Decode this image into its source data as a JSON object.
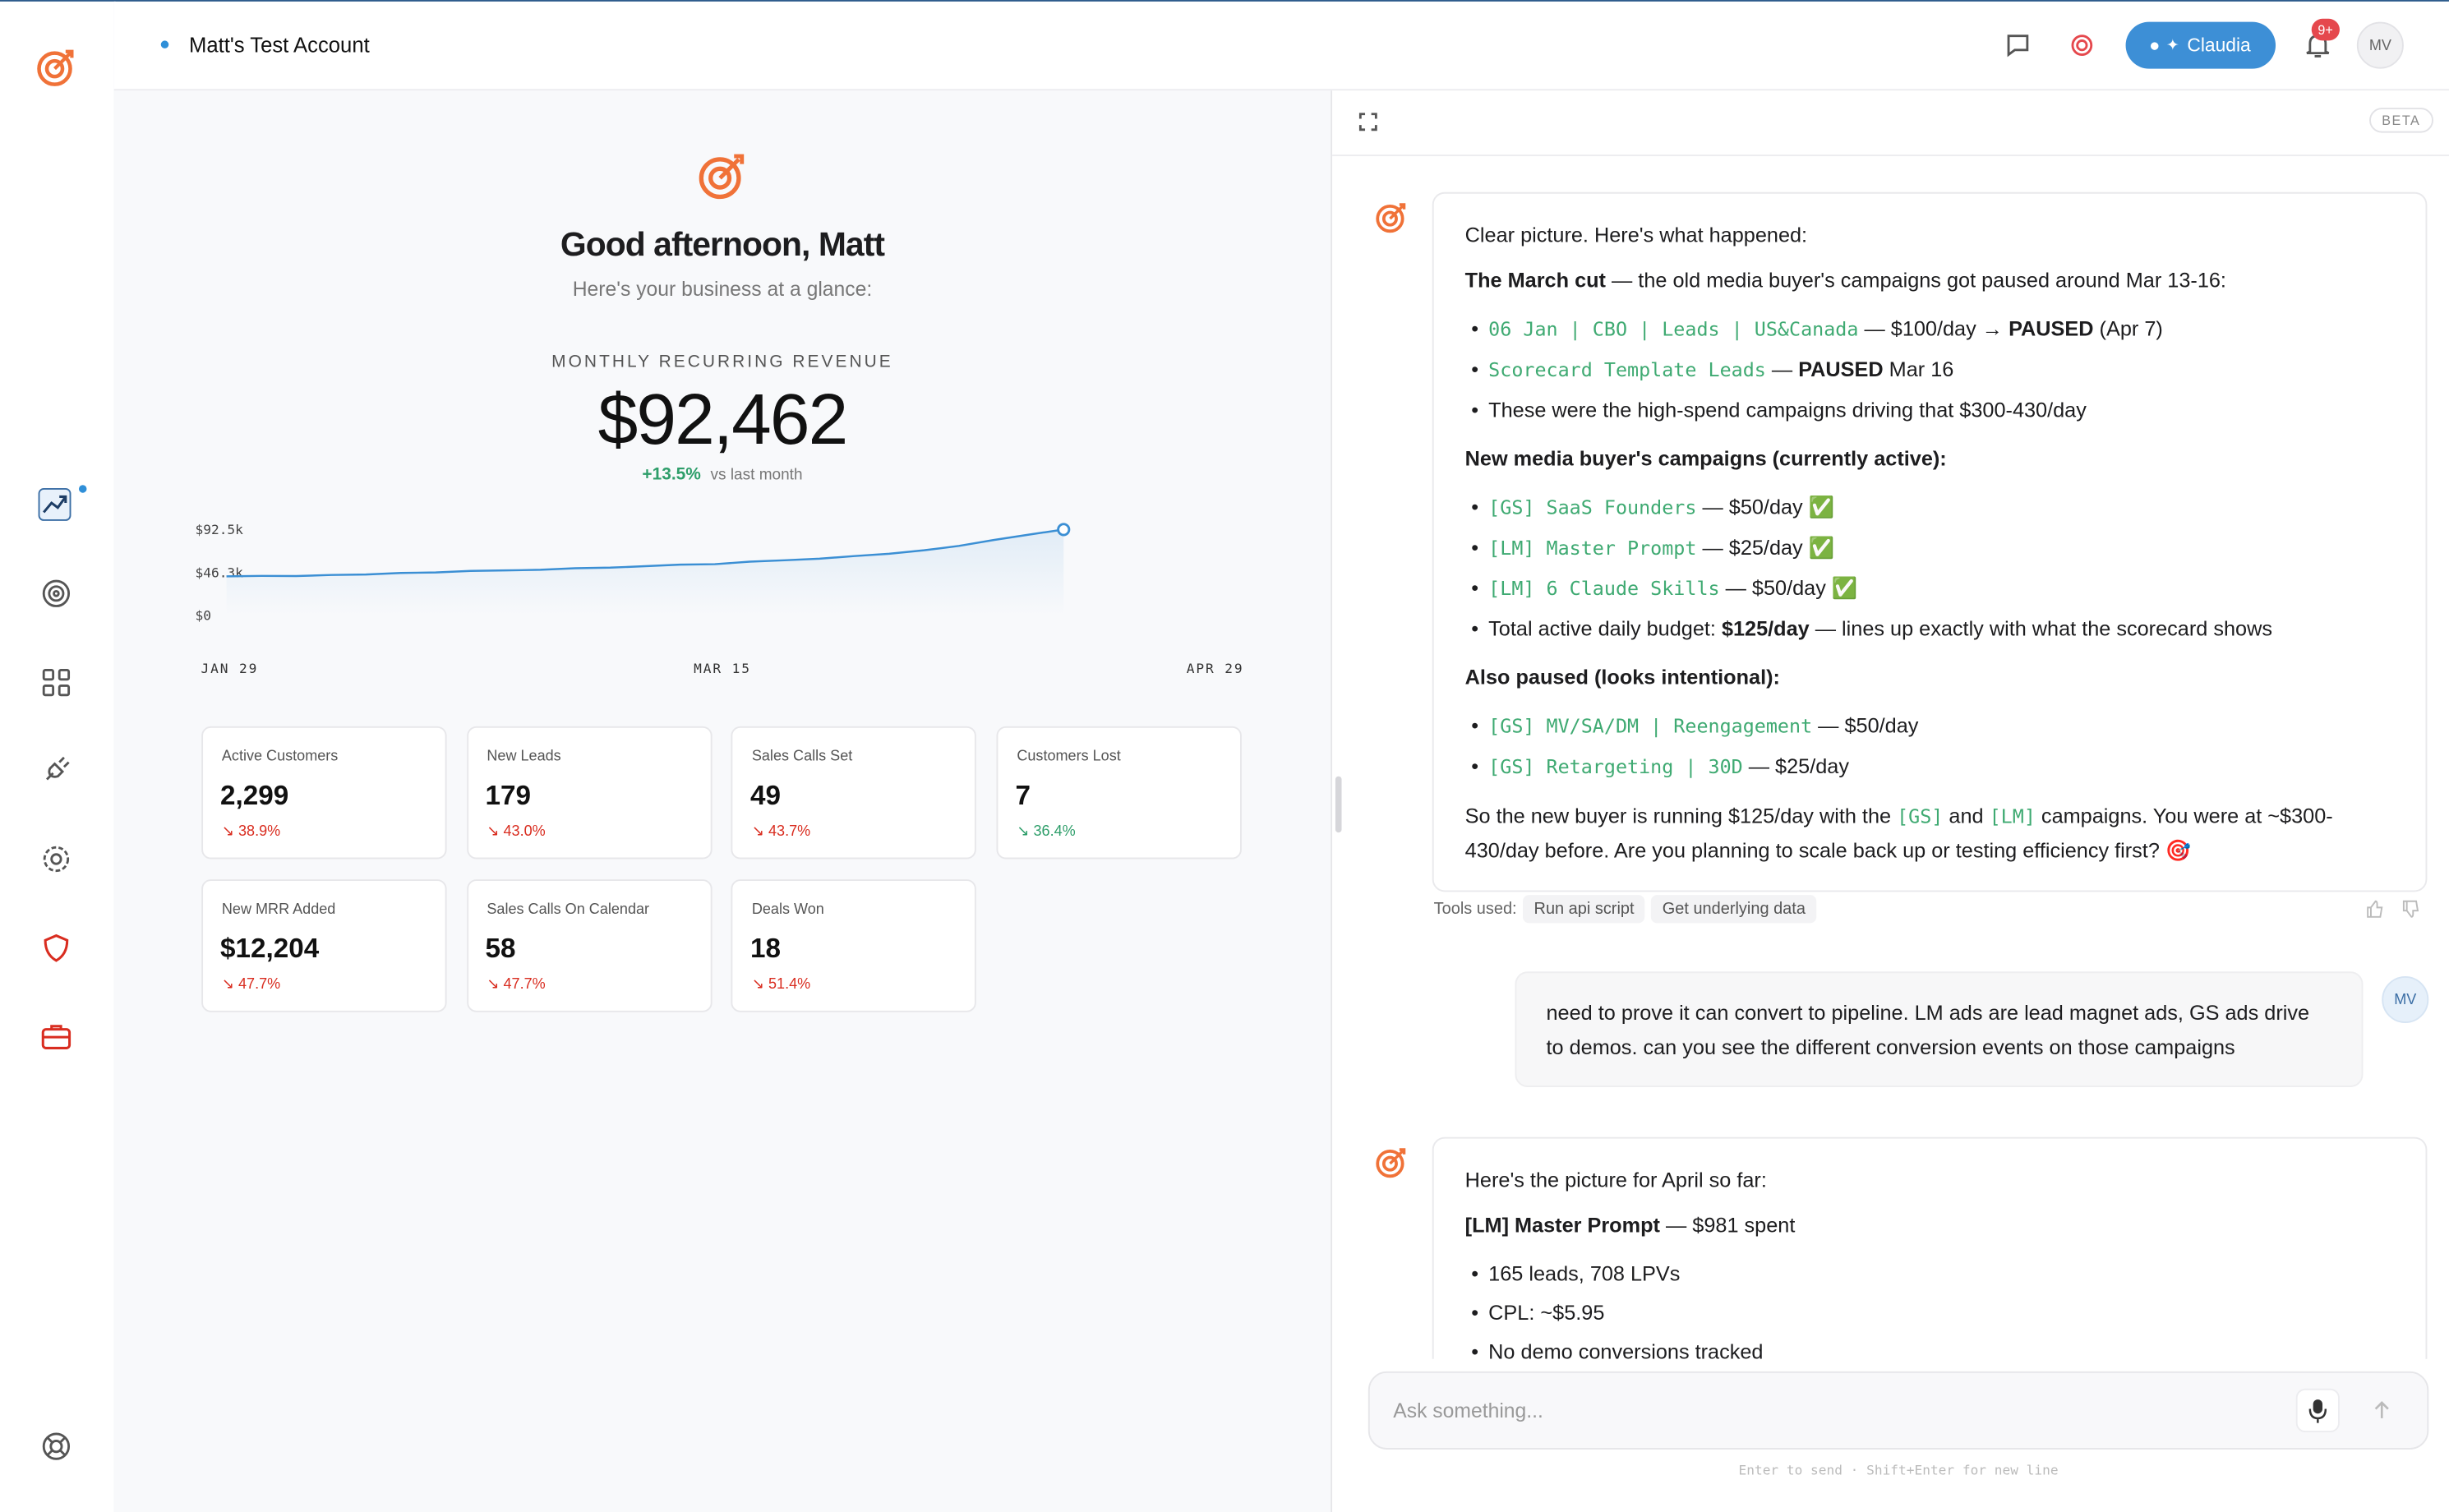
{
  "header": {
    "account": "Matt's Test Account",
    "assistant_button": "Claudia",
    "notification_badge": "9+",
    "avatar": "MV"
  },
  "dashboard": {
    "greeting": "Good afternoon, Matt",
    "subtitle": "Here's your business at a glance:",
    "mrr_label": "MONTHLY RECURRING REVENUE",
    "mrr_value": "$92,462",
    "mrr_change": "+13.5%",
    "mrr_change_note": "vs last month",
    "chart": {
      "type": "line",
      "color": "#3b8fd4",
      "values": [
        42000,
        42600,
        42300,
        43500,
        44100,
        45800,
        46200,
        47900,
        48400,
        49100,
        50800,
        51500,
        53000,
        54600,
        55200,
        57800,
        59300,
        61000,
        63900,
        66500,
        70100,
        74800,
        81200,
        86900,
        92462
      ],
      "ylim": [
        0,
        92500
      ],
      "yticks": [
        {
          "value": 0,
          "label": "$0"
        },
        {
          "value": 46300,
          "label": "$46.3k"
        },
        {
          "value": 92500,
          "label": "$92.5k"
        }
      ],
      "x_labels": [
        "JAN 29",
        "MAR 15",
        "APR 29"
      ]
    },
    "cards": [
      {
        "label": "Active Customers",
        "value": "2,299",
        "change": "↘ 38.9%",
        "color": "#d92d20"
      },
      {
        "label": "New Leads",
        "value": "179",
        "change": "↘ 43.0%",
        "color": "#d92d20"
      },
      {
        "label": "Sales Calls Set",
        "value": "49",
        "change": "↘ 43.7%",
        "color": "#d92d20"
      },
      {
        "label": "Customers Lost",
        "value": "7",
        "change": "↘ 36.4%",
        "color": "#2e9e6a"
      },
      {
        "label": "New MRR Added",
        "value": "$12,204",
        "change": "↘ 47.7%",
        "color": "#d92d20"
      },
      {
        "label": "Sales Calls On Calendar",
        "value": "58",
        "change": "↘ 47.7%",
        "color": "#d92d20"
      },
      {
        "label": "Deals Won",
        "value": "18",
        "change": "↘ 51.4%",
        "color": "#d92d20"
      }
    ]
  },
  "chat": {
    "badge": "BETA",
    "reply_1": [
      {
        "kind": "p",
        "parts": [
          {
            "text": "Clear picture. Here's what happened:"
          }
        ]
      },
      {
        "kind": "p",
        "parts": [
          {
            "text": "The March cut",
            "style": "bold"
          },
          {
            "text": " — the old media buyer's campaigns got paused around Mar 13-16:"
          }
        ]
      },
      {
        "kind": "li",
        "parts": [
          {
            "text": "06 Jan | CBO | Leads | US&Canada",
            "style": "code"
          },
          {
            "text": " — $100/day → "
          },
          {
            "text": "PAUSED",
            "style": "bold"
          },
          {
            "text": " (Apr 7)"
          }
        ]
      },
      {
        "kind": "li",
        "parts": [
          {
            "text": "Scorecard Template Leads",
            "style": "code"
          },
          {
            "text": " — "
          },
          {
            "text": "PAUSED",
            "style": "bold"
          },
          {
            "text": " Mar 16"
          }
        ]
      },
      {
        "kind": "li",
        "parts": [
          {
            "text": "These were the high-spend campaigns driving that $300-430/day"
          }
        ]
      },
      {
        "kind": "p",
        "parts": [
          {
            "text": "New media buyer's campaigns (currently active):",
            "style": "bold"
          }
        ]
      },
      {
        "kind": "li",
        "parts": [
          {
            "text": "[GS] SaaS Founders",
            "style": "code"
          },
          {
            "text": " — $50/day ✅"
          }
        ]
      },
      {
        "kind": "li",
        "parts": [
          {
            "text": "[LM] Master Prompt",
            "style": "code"
          },
          {
            "text": " — $25/day ✅"
          }
        ]
      },
      {
        "kind": "li",
        "parts": [
          {
            "text": "[LM] 6 Claude Skills",
            "style": "code"
          },
          {
            "text": " — $50/day ✅"
          }
        ]
      },
      {
        "kind": "li",
        "parts": [
          {
            "text": "Total active daily budget: "
          },
          {
            "text": "$125/day",
            "style": "bold"
          },
          {
            "text": " — lines up exactly with what the scorecard shows"
          }
        ]
      },
      {
        "kind": "p",
        "parts": [
          {
            "text": "Also paused (looks intentional):",
            "style": "bold"
          }
        ]
      },
      {
        "kind": "li",
        "parts": [
          {
            "text": "[GS] MV/SA/DM | Reengagement",
            "style": "code"
          },
          {
            "text": " — $50/day"
          }
        ]
      },
      {
        "kind": "li",
        "parts": [
          {
            "text": "[GS] Retargeting | 30D",
            "style": "code"
          },
          {
            "text": " — $25/day"
          }
        ]
      },
      {
        "kind": "p",
        "parts": [
          {
            "text": "So the new buyer is running $125/day with the "
          },
          {
            "text": "[GS]",
            "style": "code"
          },
          {
            "text": " and "
          },
          {
            "text": "[LM]",
            "style": "code"
          },
          {
            "text": " campaigns. You were at ~$300-430/day before. Are you planning to scale back up or testing efficiency first? 🎯"
          }
        ]
      }
    ],
    "tools_label": "Tools used:",
    "tools": [
      "Run api script",
      "Get underlying data"
    ],
    "user_message": {
      "avatar": "MV",
      "text": "need to prove it can convert to pipeline. LM ads are lead magnet ads, GS ads drive to demos. can you see the different conversion events on those campaigns"
    },
    "reply_2": [
      {
        "kind": "p",
        "parts": [
          {
            "text": "Here's the picture for April so far:"
          }
        ]
      },
      {
        "kind": "p",
        "parts": [
          {
            "text": "[LM] Master Prompt",
            "style": "bold"
          },
          {
            "text": " — $981 spent"
          }
        ]
      },
      {
        "kind": "li",
        "parts": [
          {
            "text": "165 leads, 708 LPVs"
          }
        ]
      },
      {
        "kind": "li",
        "parts": [
          {
            "text": "CPL: ~$5.95"
          }
        ]
      },
      {
        "kind": "li",
        "parts": [
          {
            "text": "No demo conversions tracked"
          }
        ]
      }
    ],
    "input_placeholder": "Ask something...",
    "hint": "Enter to send · Shift+Enter for new line"
  }
}
